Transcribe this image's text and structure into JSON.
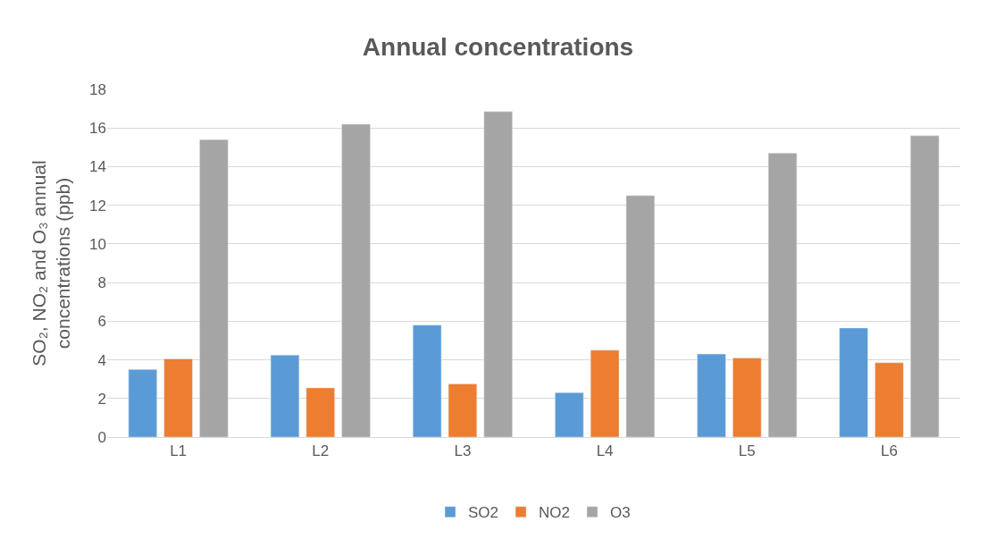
{
  "chart_data": {
    "type": "bar",
    "title": "Annual concentrations",
    "ylabel": "SO₂, NO₂ and O₃ annual\nconcentrations (ppb)",
    "categories": [
      "L1",
      "L2",
      "L3",
      "L4",
      "L5",
      "L6"
    ],
    "series": [
      {
        "name": "SO2",
        "color": "#5b9bd5",
        "values": [
          3.5,
          4.25,
          5.8,
          2.3,
          4.3,
          5.65
        ]
      },
      {
        "name": "NO2",
        "color": "#ed7d31",
        "values": [
          4.05,
          2.55,
          2.75,
          4.5,
          4.1,
          3.85
        ]
      },
      {
        "name": "O3",
        "color": "#a5a5a5",
        "values": [
          15.4,
          16.2,
          16.85,
          12.5,
          14.7,
          15.6
        ]
      }
    ],
    "ylim": [
      0,
      18
    ],
    "yticks": [
      0,
      2,
      4,
      6,
      8,
      10,
      12,
      14,
      16,
      18
    ],
    "grid": "y",
    "legend": "bottom"
  }
}
